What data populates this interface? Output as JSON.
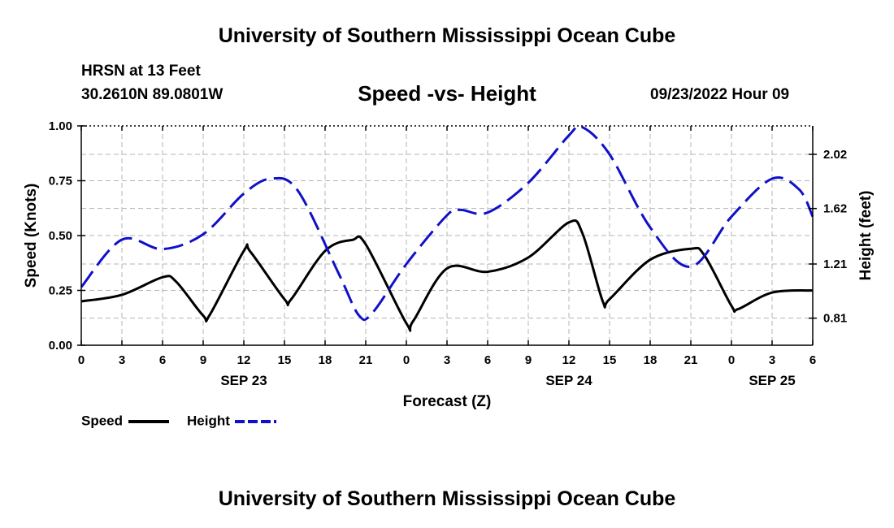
{
  "header": {
    "title": "University of Southern Mississippi Ocean Cube",
    "station": "HRSN at 13 Feet",
    "coords": "30.2610N  89.0801W",
    "subtitle": "Speed -vs- Height",
    "datetime": "09/23/2022 Hour 09"
  },
  "footer": {
    "title": "University of Southern Mississippi Ocean Cube"
  },
  "colors": {
    "speed": "#000000",
    "height": "#1010c8",
    "grid": "#b4b4b4"
  },
  "chart_data": {
    "type": "line",
    "title": "Speed -vs- Height",
    "xlabel": "Forecast (Z)",
    "ylabel": "Speed (Knots)",
    "y2label": "Height (feet)",
    "xlim": [
      0,
      54
    ],
    "ylim": [
      0,
      1.0
    ],
    "y2lim": [
      0.61,
      2.23
    ],
    "x_ticks": [
      0,
      3,
      6,
      9,
      12,
      15,
      18,
      21,
      24,
      27,
      30,
      33,
      36,
      39,
      42,
      45,
      48,
      51,
      54
    ],
    "x_tick_labels": [
      "0",
      "3",
      "6",
      "9",
      "12",
      "15",
      "18",
      "21",
      "0",
      "3",
      "6",
      "9",
      "12",
      "15",
      "18",
      "21",
      "0",
      "3",
      "6"
    ],
    "y_ticks": [
      0,
      0.25,
      0.5,
      0.75,
      1.0
    ],
    "y_tick_labels": [
      "0.00",
      "0.25",
      "0.50",
      "0.75",
      "1.00"
    ],
    "y2_ticks": [
      0.81,
      1.21,
      1.62,
      2.02
    ],
    "y2_tick_labels": [
      "0.81",
      "1.21",
      "1.62",
      "2.02"
    ],
    "date_labels": [
      {
        "x": 12,
        "label": "SEP 23"
      },
      {
        "x": 36,
        "label": "SEP 24"
      },
      {
        "x": 51,
        "label": "SEP 25"
      }
    ],
    "grid": true,
    "legend": "bottom-left",
    "series": [
      {
        "name": "Speed",
        "axis": "left",
        "style": "solid",
        "x": [
          0,
          3,
          6,
          7,
          9,
          9.5,
          12,
          12.5,
          15,
          15.5,
          18,
          20,
          21,
          24,
          24.5,
          27,
          30,
          33,
          36,
          37,
          38.5,
          39,
          42,
          45,
          46,
          48,
          48.5,
          51,
          54
        ],
        "values": [
          0.2,
          0.23,
          0.31,
          0.29,
          0.135,
          0.14,
          0.43,
          0.425,
          0.21,
          0.21,
          0.43,
          0.48,
          0.46,
          0.1,
          0.11,
          0.35,
          0.335,
          0.4,
          0.56,
          0.51,
          0.2,
          0.21,
          0.39,
          0.44,
          0.41,
          0.18,
          0.165,
          0.24,
          0.25
        ]
      },
      {
        "name": "Height",
        "axis": "right",
        "style": "dashed",
        "x": [
          0,
          3,
          6,
          9,
          12,
          14,
          16,
          19,
          20.5,
          21.5,
          24,
          27,
          28,
          30,
          33,
          36,
          37,
          39,
          42,
          45,
          48,
          51,
          53,
          54
        ],
        "values": [
          1.04,
          1.39,
          1.32,
          1.43,
          1.73,
          1.84,
          1.75,
          1.14,
          0.83,
          0.85,
          1.21,
          1.57,
          1.61,
          1.59,
          1.81,
          2.16,
          2.22,
          2.02,
          1.48,
          1.19,
          1.56,
          1.84,
          1.76,
          1.56
        ]
      }
    ]
  }
}
